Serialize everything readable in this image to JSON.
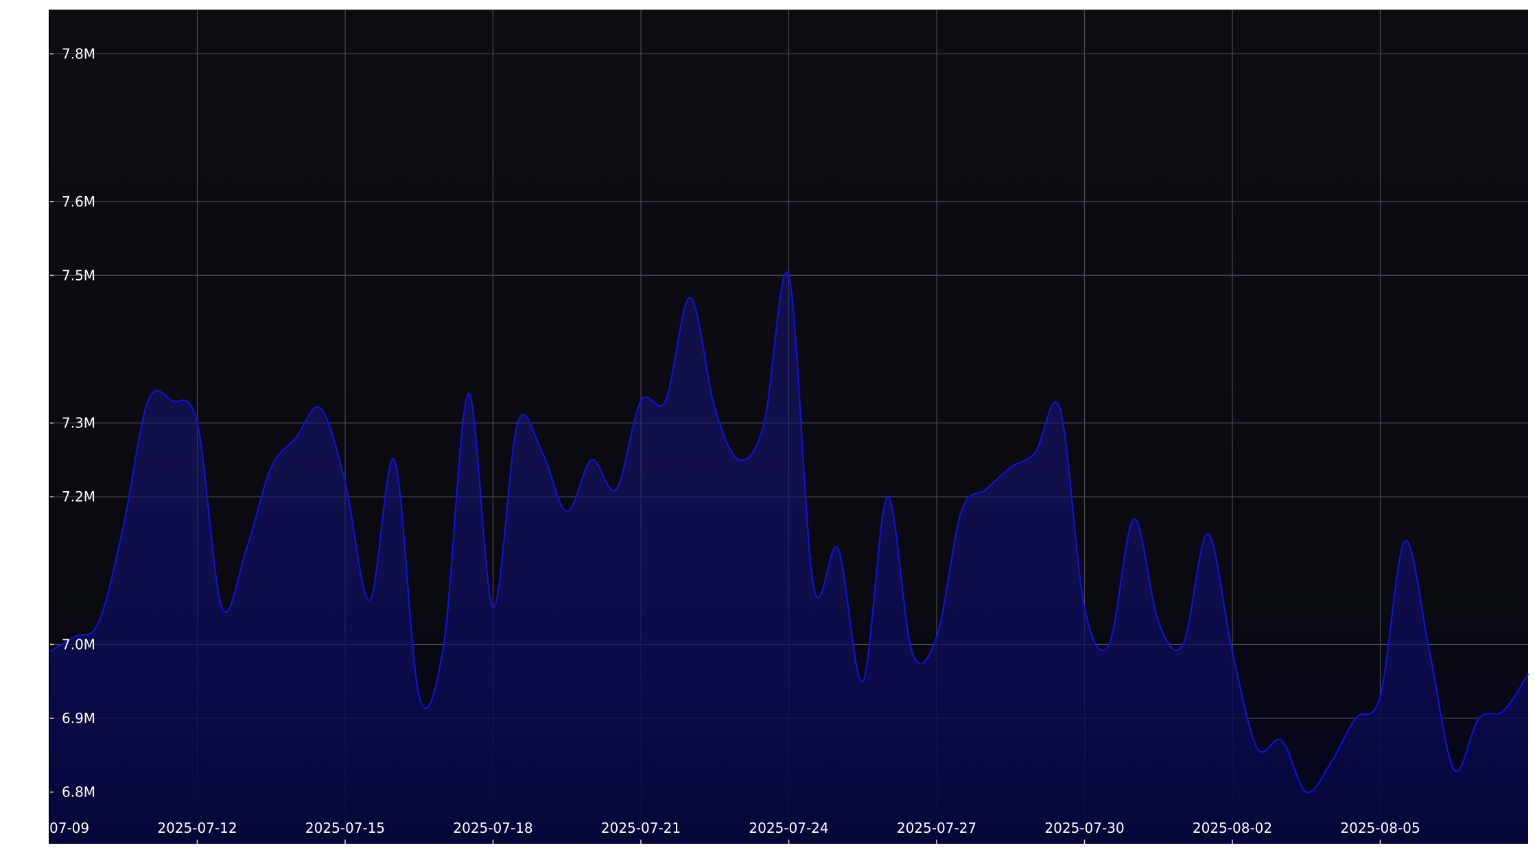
{
  "chart_data": {
    "type": "area",
    "title": "",
    "xlabel": "",
    "ylabel": "",
    "x_ticks": [
      "07-09",
      "2025-07-12",
      "2025-07-15",
      "2025-07-18",
      "2025-07-21",
      "2025-07-24",
      "2025-07-27",
      "2025-07-30",
      "2025-08-02",
      "2025-08-05"
    ],
    "y_ticks": [
      "6.8M",
      "6.9M",
      "7.0M",
      "7.2M",
      "7.3M",
      "7.5M",
      "7.6M",
      "7.8M"
    ],
    "y_tick_values": [
      6800000,
      6900000,
      7000000,
      7200000,
      7300000,
      7500000,
      7600000,
      7800000
    ],
    "xlim": [
      "2025-07-09",
      "2025-08-08"
    ],
    "ylim": [
      6730000,
      7860000
    ],
    "grid": true,
    "line_color": "#1010e0",
    "fill_color": "#0a0a60",
    "background_color": "#0b0a10",
    "series": [
      {
        "x": [
          "2025-07-09",
          "2025-07-09T12:00",
          "2025-07-10",
          "2025-07-10T12:00",
          "2025-07-11",
          "2025-07-11T12:00",
          "2025-07-12",
          "2025-07-12T12:00",
          "2025-07-13",
          "2025-07-13T12:00",
          "2025-07-14",
          "2025-07-14T12:00",
          "2025-07-15",
          "2025-07-15T12:00",
          "2025-07-16",
          "2025-07-16T12:00",
          "2025-07-17",
          "2025-07-17T12:00",
          "2025-07-18",
          "2025-07-18T12:00",
          "2025-07-19",
          "2025-07-19T12:00",
          "2025-07-20",
          "2025-07-20T12:00",
          "2025-07-21",
          "2025-07-21T12:00",
          "2025-07-22",
          "2025-07-22T12:00",
          "2025-07-23",
          "2025-07-23T12:00",
          "2025-07-24",
          "2025-07-24T12:00",
          "2025-07-25",
          "2025-07-25T12:00",
          "2025-07-26",
          "2025-07-26T12:00",
          "2025-07-27",
          "2025-07-27T12:00",
          "2025-07-28",
          "2025-07-28T12:00",
          "2025-07-29",
          "2025-07-29T12:00",
          "2025-07-30",
          "2025-07-30T12:00",
          "2025-07-31",
          "2025-07-31T12:00",
          "2025-08-01",
          "2025-08-01T12:00",
          "2025-08-02",
          "2025-08-02T12:00",
          "2025-08-03",
          "2025-08-03T12:00",
          "2025-08-04",
          "2025-08-04T12:00",
          "2025-08-05",
          "2025-08-05T12:00",
          "2025-08-06",
          "2025-08-06T12:00",
          "2025-08-07",
          "2025-08-07T12:00",
          "2025-08-08"
        ],
        "y": [
          6990000,
          7010000,
          7030000,
          7160000,
          7330000,
          7330000,
          7300000,
          7050000,
          7130000,
          7240000,
          7280000,
          7320000,
          7220000,
          7060000,
          7250000,
          6930000,
          7000000,
          7340000,
          7050000,
          7300000,
          7260000,
          7180000,
          7250000,
          7210000,
          7330000,
          7330000,
          7470000,
          7320000,
          7250000,
          7300000,
          7500000,
          7080000,
          7130000,
          6950000,
          7200000,
          6990000,
          7010000,
          7180000,
          7210000,
          7240000,
          7260000,
          7320000,
          7050000,
          7000000,
          7170000,
          7030000,
          7000000,
          7150000,
          6990000,
          6860000,
          6870000,
          6800000,
          6840000,
          6900000,
          6930000,
          7140000,
          6990000,
          6830000,
          6900000,
          6910000,
          6960000
        ]
      }
    ]
  }
}
